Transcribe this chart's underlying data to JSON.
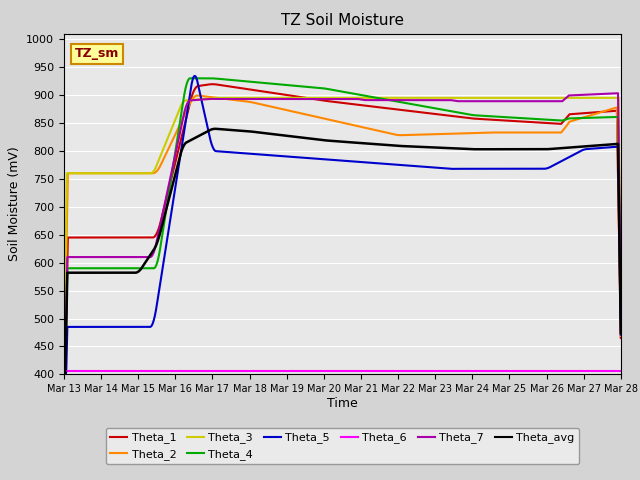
{
  "title": "TZ Soil Moisture",
  "ylabel": "Soil Moisture (mV)",
  "xlabel": "Time",
  "ylim": [
    400,
    1010
  ],
  "yticks": [
    400,
    450,
    500,
    550,
    600,
    650,
    700,
    750,
    800,
    850,
    900,
    950,
    1000
  ],
  "bg_color": "#e8e8e8",
  "series": {
    "Theta_1": {
      "color": "#cc0000",
      "lw": 1.5
    },
    "Theta_2": {
      "color": "#ff8800",
      "lw": 1.5
    },
    "Theta_3": {
      "color": "#cccc00",
      "lw": 1.5
    },
    "Theta_4": {
      "color": "#00aa00",
      "lw": 1.5
    },
    "Theta_5": {
      "color": "#0000cc",
      "lw": 1.5
    },
    "Theta_6": {
      "color": "#ff00ff",
      "lw": 1.5
    },
    "Theta_7": {
      "color": "#aa00aa",
      "lw": 1.5
    },
    "Theta_avg": {
      "color": "#000000",
      "lw": 1.8
    }
  },
  "x_start_day": 13,
  "x_end_day": 28,
  "x_tick_days": [
    13,
    14,
    15,
    16,
    17,
    18,
    19,
    20,
    21,
    22,
    23,
    24,
    25,
    26,
    27,
    28
  ]
}
